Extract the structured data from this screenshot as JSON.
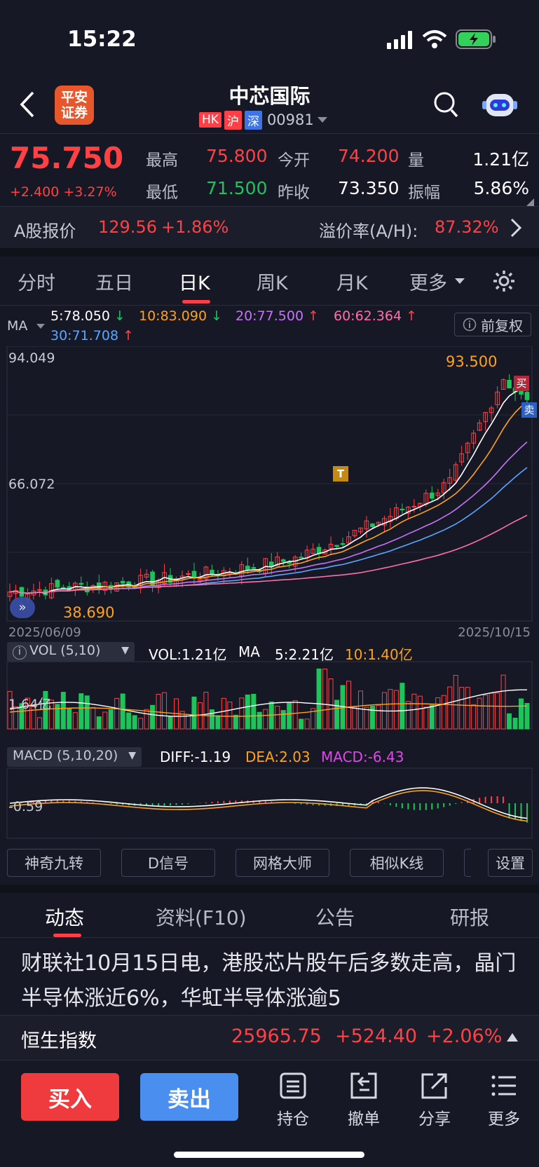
{
  "status": {
    "time": "15:22"
  },
  "header": {
    "broker_logo": "平安证券",
    "title": "中芯国际",
    "markets": [
      "HK",
      "沪",
      "深"
    ],
    "code": "00981"
  },
  "quote": {
    "price": "75.750",
    "change": "+2.400 +3.27%",
    "fields": [
      {
        "label": "最高",
        "value": "75.800"
      },
      {
        "label": "今开",
        "value": "74.200"
      },
      {
        "label": "量",
        "value": "1.21亿"
      },
      {
        "label": "最低",
        "value": "71.500"
      },
      {
        "label": "昨收",
        "value": "73.350"
      },
      {
        "label": "振幅",
        "value": "5.86%"
      }
    ]
  },
  "a_share": {
    "label": "A股报价",
    "price": "129.56",
    "change": "+1.86%",
    "premium_label": "溢价率(A/H):",
    "premium": "87.32%"
  },
  "period_tabs": [
    "分时",
    "五日",
    "日K",
    "周K",
    "月K",
    "更多"
  ],
  "active_tab": "日K",
  "ma_legend": {
    "label": "MA",
    "items": [
      {
        "text": "5:78.050",
        "arrow": "↓",
        "color": "#ffffff"
      },
      {
        "text": "10:83.090",
        "arrow": "↓",
        "color": "#ffa21b"
      },
      {
        "text": "20:77.500",
        "arrow": "↑",
        "color": "#c574f5"
      },
      {
        "text": "60:62.364",
        "arrow": "↑",
        "color": "#ff6fa8"
      },
      {
        "text": "30:71.708",
        "arrow": "↑",
        "color": "#5aa6ff"
      }
    ],
    "adjust": "前复权"
  },
  "chart_data": {
    "type": "candlestick",
    "y_max_label": "94.049",
    "y_mid_label": "66.072",
    "y_min_label": "38.690",
    "high_label": "93.500",
    "start_date": "2025/06/09",
    "end_date": "2025/10/15",
    "markers": {
      "buy": "买",
      "sell": "卖",
      "t": "T"
    }
  },
  "volume": {
    "legend": "VOL (5,10)",
    "vol": "VOL:1.21亿",
    "ma_label": "MA",
    "ma5": "5:2.21亿",
    "ma10": "10:1.40亿",
    "axis_label": "1.64亿"
  },
  "macd": {
    "legend": "MACD (5,10,20)",
    "diff": "DIFF:-1.19",
    "dea": "DEA:2.03",
    "macd": "MACD:-6.43",
    "axis_label": "-0.59"
  },
  "tools": [
    "神奇九转",
    "D信号",
    "网格大师",
    "相似K线",
    "设置"
  ],
  "news_tabs": [
    "动态",
    "资料(F10)",
    "公告",
    "研报"
  ],
  "active_news_tab": "动态",
  "news_text": "财联社10月15日电，港股芯片股午后多数走高，晶门半导体涨近6%，华虹半导体涨逾5",
  "index": {
    "name": "恒生指数",
    "value": "25965.75",
    "change": "+524.40",
    "pct": "+2.06%"
  },
  "bottom": {
    "buy": "买入",
    "sell": "卖出",
    "actions": [
      "持仓",
      "撤单",
      "分享",
      "更多"
    ]
  }
}
